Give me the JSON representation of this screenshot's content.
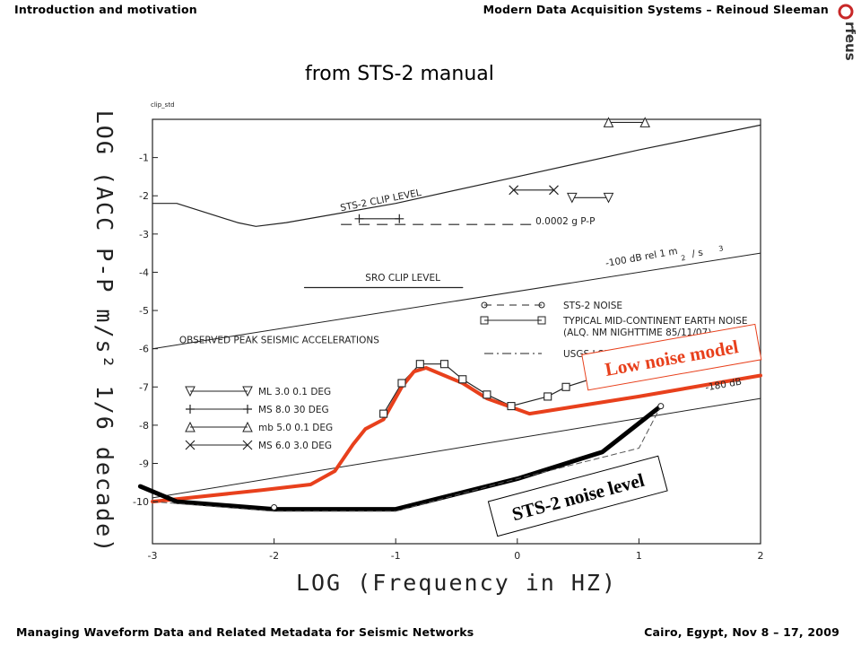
{
  "header": {
    "left": "Introduction and motivation",
    "right": "Modern Data Acquisition Systems – Reinoud Sleeman"
  },
  "footer": {
    "left": "Managing Waveform Data and Related Metadata for Seismic Networks",
    "right": "Cairo, Egypt,  Nov 8 – 17, 2009"
  },
  "logo": {
    "text": "rfeus",
    "icon": "orfeus-logo"
  },
  "slide_title": "from STS-2 manual",
  "colors": {
    "red": "#e8401c",
    "black": "#000000",
    "ink": "#222222"
  },
  "chart_data": {
    "type": "line",
    "figure_tag": "clip_std",
    "xlabel": "LOG (Frequency in HZ)",
    "ylabel": "LOG (ACC P-P m/s² 1/6 decade)",
    "xlim": [
      -3,
      2
    ],
    "ylim": [
      -11.1,
      0
    ],
    "xticks": [
      -3,
      -2,
      -1,
      0,
      1,
      2
    ],
    "xtick_labels": [
      "-3",
      "-2",
      "-1",
      "0",
      "1",
      "2"
    ],
    "yticks": [
      -1,
      -2,
      -3,
      -4,
      -5,
      -6,
      -7,
      -8,
      -9,
      -10
    ],
    "ytick_labels": [
      "-1",
      "-2",
      "-3",
      "-4",
      "-5",
      "-6",
      "-7",
      "-8",
      "-9",
      "-10"
    ],
    "grid": false,
    "series": [
      {
        "name": "STS-2 CLIP LEVEL",
        "style": "solid",
        "x": [
          -3.0,
          -2.8,
          -2.3,
          -2.15,
          -1.9,
          -1.0,
          0.0,
          1.0,
          2.0
        ],
        "y": [
          -2.2,
          -2.2,
          -2.7,
          -2.8,
          -2.7,
          -2.2,
          -1.5,
          -0.8,
          -0.15
        ]
      },
      {
        "name": "SRO CLIP LEVEL",
        "style": "solid",
        "x": [
          -1.75,
          -0.45
        ],
        "y": [
          -4.4,
          -4.4
        ]
      },
      {
        "name": "-100 dB rel 1 m²/s³",
        "style": "solid",
        "x": [
          -3.0,
          2.0
        ],
        "y": [
          -6.0,
          -3.5
        ]
      },
      {
        "name": "-180 dB",
        "style": "solid",
        "x": [
          -3.0,
          2.0
        ],
        "y": [
          -9.9,
          -7.3
        ]
      },
      {
        "name": "TYPICAL MID-CONTINENT EARTH NOISE (ALQ. NM NIGHTTIME 85/11/07)",
        "style": "square-markers",
        "x": [
          -1.1,
          -0.95,
          -0.8,
          -0.6,
          -0.45,
          -0.25,
          -0.05,
          0.25,
          0.4,
          0.9,
          1.45
        ],
        "y": [
          -7.7,
          -6.9,
          -6.4,
          -6.4,
          -6.8,
          -7.2,
          -7.5,
          -7.25,
          -7.0,
          -6.5,
          -5.75
        ]
      },
      {
        "name": "STS-2 NOISE",
        "style": "circle-dashed",
        "x": [
          -3.0,
          -2.0,
          -1.0,
          0.0,
          0.5,
          1.0,
          1.18
        ],
        "y": [
          -10.0,
          -10.25,
          -10.25,
          -9.4,
          -9.0,
          -8.6,
          -7.5
        ]
      },
      {
        "name": "Low noise model",
        "style": "red-thick",
        "x": [
          -3.0,
          -2.1,
          -1.7,
          -1.5,
          -1.35,
          -1.25,
          -1.1,
          -0.95,
          -0.85,
          -0.75,
          -0.45,
          -0.25,
          0.1,
          1.0,
          2.0
        ],
        "y": [
          -10.0,
          -9.7,
          -9.55,
          -9.2,
          -8.5,
          -8.1,
          -7.85,
          -7.0,
          -6.6,
          -6.5,
          -6.9,
          -7.3,
          -7.7,
          -7.25,
          -6.7
        ]
      },
      {
        "name": "STS-2 noise level",
        "style": "black-thick",
        "x": [
          -3.1,
          -2.8,
          -2.0,
          -1.0,
          0.0,
          0.7,
          1.18
        ],
        "y": [
          -9.6,
          -10.0,
          -10.2,
          -10.2,
          -9.4,
          -8.7,
          -7.5
        ]
      }
    ],
    "annotations": [
      {
        "text": "STS-2 CLIP LEVEL",
        "x": -1.45,
        "y": -2.4,
        "angle": -11
      },
      {
        "text": "SRO CLIP LEVEL",
        "x": -1.25,
        "y": -4.22,
        "angle": 0
      },
      {
        "text": "0.0002 g P-P",
        "x": 0.15,
        "y": -2.75,
        "angle": 0
      },
      {
        "text": "-100 dB rel 1 m",
        "x": 0.73,
        "y": -3.85,
        "angle": -10
      },
      {
        "text": "2",
        "x": 1.35,
        "y": -3.7,
        "angle": -10
      },
      {
        "text": "/ s",
        "x": 1.44,
        "y": -3.6,
        "angle": -10
      },
      {
        "text": "3",
        "x": 1.66,
        "y": -3.45,
        "angle": -10
      },
      {
        "text": "-180 dB",
        "x": 1.55,
        "y": -7.1,
        "angle": -10
      },
      {
        "text": "OBSERVED PEAK SEISMIC ACCELERATIONS",
        "x": -2.78,
        "y": -5.85,
        "angle": 0
      }
    ],
    "seismic_events": [
      {
        "label": "ML 3.0 0.1 DEG",
        "marker": "triangle-down",
        "x": [
          0.45,
          0.75
        ],
        "y": -2.05
      },
      {
        "label": "MS 8.0 30 DEG",
        "marker": "plus",
        "x": [
          -1.3,
          -0.97
        ],
        "y": -2.6
      },
      {
        "label": "mb 5.0 0.1 DEG",
        "marker": "triangle-up",
        "x": [
          0.75,
          1.05
        ],
        "y": -0.08
      },
      {
        "label": "MS 6.0 3.0 DEG",
        "marker": "x",
        "x": [
          -0.03,
          0.3
        ],
        "y": -1.85
      }
    ],
    "legend": {
      "placement": "center-left",
      "items": [
        {
          "label": "ML 3.0 0.1 DEG",
          "marker": "triangle-down"
        },
        {
          "label": "MS 8.0 30 DEG",
          "marker": "plus"
        },
        {
          "label": "mb 5.0 0.1 DEG",
          "marker": "triangle-up"
        },
        {
          "label": "MS 6.0 3.0 DEG",
          "marker": "x"
        }
      ]
    },
    "legend_right": {
      "placement": "center-right",
      "items": [
        {
          "label": "STS-2 NOISE",
          "marker": "circle-dashed"
        },
        {
          "label": "TYPICAL MID-CONTINENT EARTH NOISE",
          "marker": "square-solid"
        },
        {
          "label": "(ALQ. NM NIGHTTIME 85/11/07)",
          "marker": "none"
        },
        {
          "label": "USGS LOW NOISE",
          "marker": "dashdot"
        }
      ]
    },
    "callouts": [
      {
        "text": "Low noise model",
        "color": "#e8401c"
      },
      {
        "text": "STS-2 noise level",
        "color": "#000000"
      }
    ]
  }
}
